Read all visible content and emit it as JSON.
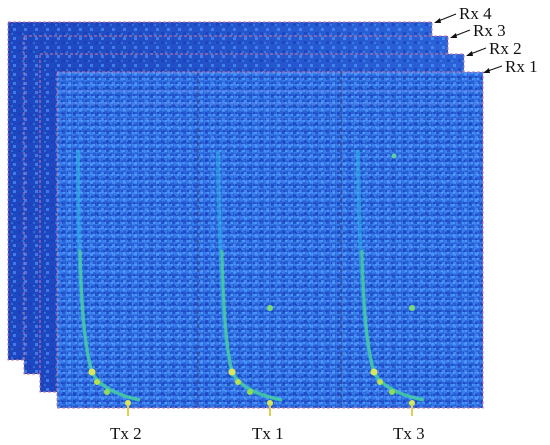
{
  "figure": {
    "receiver_labels": [
      "Rx 4",
      "Rx 3",
      "Rx 2",
      "Rx 1"
    ],
    "transmitter_labels": [
      "Tx 2",
      "Tx 1",
      "Tx 3"
    ]
  },
  "colors": {
    "background_field": "#2f6fe0",
    "speckle_dark": "#1d3fc4",
    "speckle_light": "#4aa3ff",
    "curve_cyan": "#38d8d0",
    "curve_green": "#5fdc6a",
    "curve_yellow": "#d8e85a",
    "frame_dash": "#d07aa0",
    "divider_dash": "#3a3a6a"
  }
}
